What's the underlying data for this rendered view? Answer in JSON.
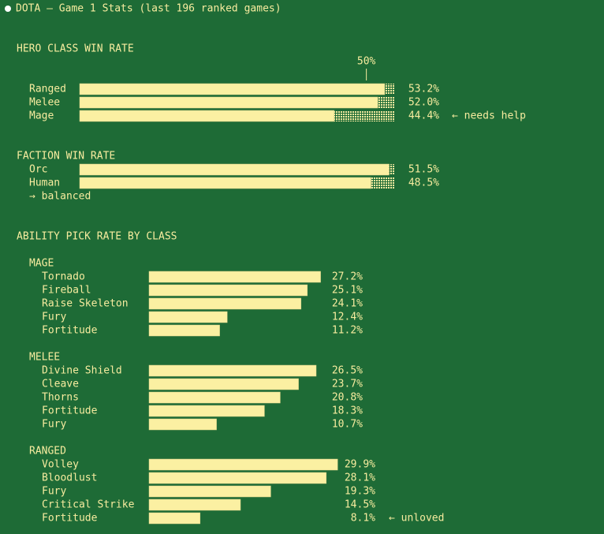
{
  "title": "DOTA — Game 1 Stats (last 196 ranked games)",
  "heading": "ABILITY PICK RATE BY CLASS",
  "chart_data": [
    {
      "type": "bar",
      "title": "HERO CLASS WIN RATE",
      "categories": [
        "Ranged",
        "Melee",
        "Mage"
      ],
      "values": [
        53.2,
        52.0,
        44.4
      ],
      "value_labels": [
        "53.2%",
        "52.0%",
        "44.4%"
      ],
      "notes": [
        null,
        null,
        "← needs help"
      ],
      "reference": {
        "value": 50,
        "label": "50%"
      },
      "xlim": [
        0,
        55
      ],
      "color": "#fbf0a2"
    },
    {
      "type": "bar",
      "title": "FACTION WIN RATE",
      "categories": [
        "Orc",
        "Human"
      ],
      "values": [
        51.5,
        48.5
      ],
      "value_labels": [
        "51.5%",
        "48.5%"
      ],
      "note": "→ balanced",
      "xlim": [
        0,
        52.5
      ],
      "color": "#fbf0a2"
    },
    {
      "type": "bar",
      "title": "MAGE",
      "categories": [
        "Tornado",
        "Fireball",
        "Raise Skeleton",
        "Fury",
        "Fortitude"
      ],
      "values": [
        27.2,
        25.1,
        24.1,
        12.4,
        11.2
      ],
      "value_labels": [
        "27.2%",
        "25.1%",
        "24.1%",
        "12.4%",
        "11.2%"
      ],
      "xlim": [
        0,
        50
      ],
      "color": "#fbf0a2"
    },
    {
      "type": "bar",
      "title": "MELEE",
      "categories": [
        "Divine Shield",
        "Cleave",
        "Thorns",
        "Fortitude",
        "Fury"
      ],
      "values": [
        26.5,
        23.7,
        20.8,
        18.3,
        10.7
      ],
      "value_labels": [
        "26.5%",
        "23.7%",
        "20.8%",
        "18.3%",
        "10.7%"
      ],
      "xlim": [
        0,
        50
      ],
      "color": "#fbf0a2"
    },
    {
      "type": "bar",
      "title": "RANGED",
      "categories": [
        "Volley",
        "Bloodlust",
        "Fury",
        "Critical Strike",
        "Fortitude"
      ],
      "values": [
        29.9,
        28.1,
        19.3,
        14.5,
        8.1
      ],
      "value_labels": [
        "29.9%",
        "28.1%",
        "19.3%",
        "14.5%",
        "8.1%"
      ],
      "notes": [
        null,
        null,
        null,
        null,
        "← unloved"
      ],
      "xlim": [
        0,
        50
      ],
      "color": "#fbf0a2"
    }
  ]
}
